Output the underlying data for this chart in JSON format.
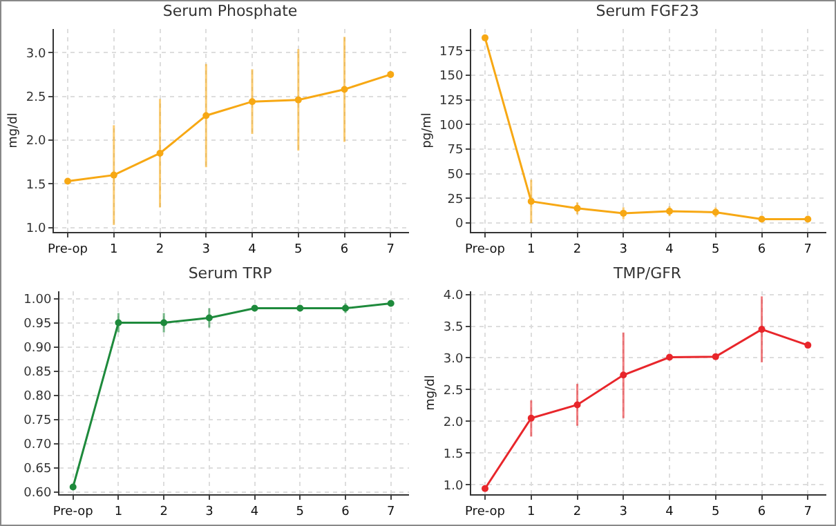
{
  "chart_data": [
    {
      "type": "line",
      "title": "Serum Phosphate",
      "ylabel": "mg/dl",
      "categories": [
        "Pre-op",
        "1",
        "2",
        "3",
        "4",
        "5",
        "6",
        "7"
      ],
      "series": [
        {
          "color": "#f7a814",
          "values": [
            1.53,
            1.6,
            1.85,
            2.28,
            2.44,
            2.46,
            2.58,
            2.75
          ],
          "errors": [
            null,
            [
              1.03,
              2.17
            ],
            [
              1.23,
              2.47
            ],
            [
              1.69,
              2.87
            ],
            [
              2.07,
              2.81
            ],
            [
              1.88,
              3.04
            ],
            [
              1.98,
              3.18
            ],
            [
              2.71,
              2.79
            ]
          ]
        }
      ],
      "ylim": [
        0.95,
        3.27
      ],
      "yticks": [
        {
          "value": 1,
          "label": "1.0"
        },
        1.5,
        {
          "value": 2,
          "label": "2.0"
        },
        2.5,
        {
          "value": 3,
          "label": "3.0"
        }
      ],
      "grid": true,
      "marker": "circle",
      "line_style": "solid"
    },
    {
      "type": "line",
      "title": "Serum FGF23",
      "ylabel": "pg/ml",
      "categories": [
        "Pre-op",
        "1",
        "2",
        "3",
        "4",
        "5",
        "6",
        "7"
      ],
      "series": [
        {
          "color": "#f7a814",
          "values": [
            188,
            22,
            15,
            10,
            12,
            11,
            4,
            4
          ],
          "errors": [
            null,
            [
              0,
              44
            ],
            [
              9,
              21
            ],
            [
              4,
              16
            ],
            [
              7,
              17
            ],
            [
              6,
              16
            ],
            null,
            null
          ]
        }
      ],
      "ylim": [
        -9,
        197
      ],
      "yticks": [
        0,
        25,
        50,
        75,
        100,
        125,
        150,
        175
      ],
      "grid": true,
      "marker": "circle",
      "line_style": "solid"
    },
    {
      "type": "line",
      "title": "Serum TRP",
      "categories": [
        "Pre-op",
        "1",
        "2",
        "3",
        "4",
        "5",
        "6",
        "7"
      ],
      "series": [
        {
          "color": "#1e8a3c",
          "values": [
            0.61,
            0.95,
            0.95,
            0.96,
            0.98,
            0.98,
            0.98,
            0.99
          ],
          "errors": [
            null,
            [
              0.93,
              0.97
            ],
            [
              0.93,
              0.97
            ],
            [
              0.94,
              0.98
            ],
            null,
            null,
            [
              0.97,
              0.99
            ],
            null
          ]
        }
      ],
      "ylim": [
        0.595,
        1.015
      ],
      "yticks": [
        {
          "value": 0.6,
          "label": "0.60"
        },
        0.65,
        {
          "value": 0.7,
          "label": "0.70"
        },
        0.75,
        {
          "value": 0.8,
          "label": "0.80"
        },
        0.85,
        {
          "value": 0.9,
          "label": "0.90"
        },
        0.95,
        {
          "value": 1,
          "label": "1.00"
        }
      ],
      "grid": true,
      "marker": "circle",
      "line_style": "solid"
    },
    {
      "type": "line",
      "title": "TMP/GFR",
      "ylabel": "mg/dl",
      "categories": [
        "Pre-op",
        "1",
        "2",
        "3",
        "4",
        "5",
        "6",
        "7"
      ],
      "series": [
        {
          "color": "#e8262b",
          "values": [
            0.94,
            2.05,
            2.26,
            2.73,
            3.01,
            3.02,
            3.45,
            3.2
          ],
          "errors": [
            null,
            [
              1.76,
              2.33
            ],
            [
              1.93,
              2.59
            ],
            [
              2.05,
              3.4
            ],
            null,
            null,
            [
              2.93,
              3.97
            ],
            null
          ]
        }
      ],
      "ylim": [
        0.85,
        4.05
      ],
      "yticks": [
        {
          "value": 1,
          "label": "1.0"
        },
        1.5,
        {
          "value": 2,
          "label": "2.0"
        },
        2.5,
        {
          "value": 3,
          "label": "3.0"
        },
        3.5,
        {
          "value": 4,
          "label": "4.0"
        }
      ],
      "grid": true,
      "marker": "circle",
      "line_style": "solid"
    }
  ]
}
